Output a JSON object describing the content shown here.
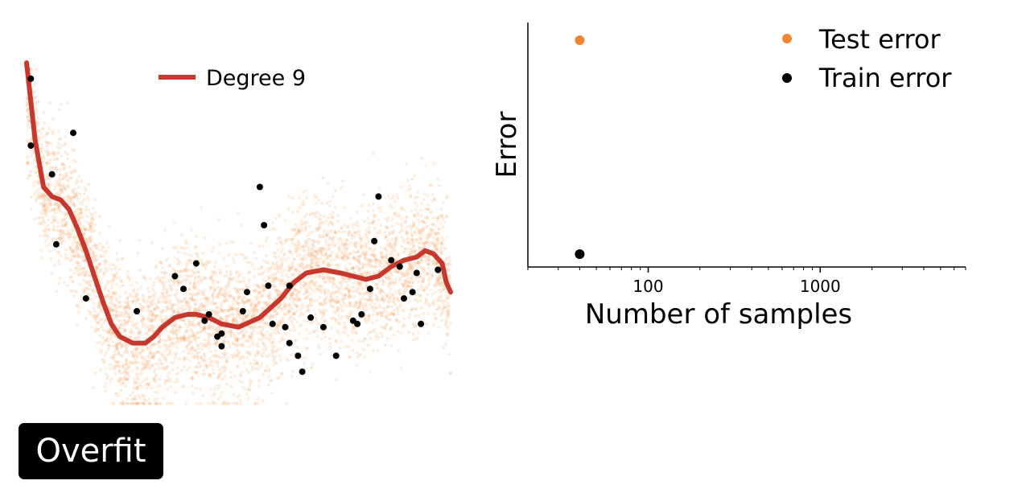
{
  "badge": {
    "label": "Overfit"
  },
  "colors": {
    "fit_line": "#c8372d",
    "population": "#f08a3c",
    "test": "#ee8636",
    "train": "#000000"
  },
  "chart_data": [
    {
      "type": "scatter",
      "title": "",
      "xlabel": "",
      "ylabel": "",
      "axes_visible": false,
      "legend": [
        {
          "name": "Degree 9"
        }
      ],
      "legend_position": "top-center",
      "xlim": [
        0,
        1
      ],
      "ylim": [
        0,
        1
      ],
      "background_population": {
        "count": 5000,
        "shown_as": "faint orange cloud following the same trend"
      },
      "series": [
        {
          "name": "Degree 9",
          "kind": "line",
          "x": [
            0.0,
            0.02,
            0.04,
            0.06,
            0.08,
            0.1,
            0.12,
            0.14,
            0.16,
            0.18,
            0.2,
            0.22,
            0.25,
            0.28,
            0.3,
            0.32,
            0.35,
            0.38,
            0.4,
            0.43,
            0.46,
            0.5,
            0.55,
            0.6,
            0.63,
            0.66,
            0.7,
            0.74,
            0.77,
            0.8,
            0.83,
            0.86,
            0.89,
            0.92,
            0.94,
            0.96,
            0.98,
            0.99,
            1.0
          ],
          "y": [
            1.02,
            0.78,
            0.63,
            0.6,
            0.59,
            0.56,
            0.5,
            0.43,
            0.35,
            0.27,
            0.2,
            0.16,
            0.14,
            0.14,
            0.16,
            0.19,
            0.22,
            0.23,
            0.23,
            0.22,
            0.2,
            0.19,
            0.22,
            0.28,
            0.33,
            0.36,
            0.37,
            0.36,
            0.35,
            0.34,
            0.35,
            0.38,
            0.4,
            0.41,
            0.43,
            0.42,
            0.39,
            0.33,
            0.3
          ]
        },
        {
          "name": "Samples",
          "kind": "points",
          "x": [
            0.01,
            0.01,
            0.06,
            0.07,
            0.11,
            0.14,
            0.26,
            0.35,
            0.37,
            0.4,
            0.42,
            0.43,
            0.45,
            0.46,
            0.46,
            0.51,
            0.52,
            0.55,
            0.56,
            0.57,
            0.58,
            0.61,
            0.62,
            0.62,
            0.64,
            0.65,
            0.67,
            0.7,
            0.73,
            0.77,
            0.78,
            0.79,
            0.81,
            0.82,
            0.83,
            0.86,
            0.88,
            0.89,
            0.91,
            0.92,
            0.93,
            0.97
          ],
          "y": [
            0.97,
            0.76,
            0.67,
            0.45,
            0.8,
            0.28,
            0.24,
            0.35,
            0.31,
            0.39,
            0.21,
            0.23,
            0.16,
            0.17,
            0.13,
            0.24,
            0.3,
            0.63,
            0.51,
            0.32,
            0.2,
            0.19,
            0.32,
            0.14,
            0.1,
            0.05,
            0.22,
            0.19,
            0.1,
            0.21,
            0.2,
            0.23,
            0.31,
            0.46,
            0.6,
            0.4,
            0.38,
            0.28,
            0.3,
            0.36,
            0.2,
            0.37
          ]
        }
      ]
    },
    {
      "type": "scatter",
      "title": "",
      "xlabel": "Number of samples",
      "ylabel": "Error",
      "x_scale": "log",
      "xlim": [
        20,
        7000
      ],
      "ylim": [
        0,
        1
      ],
      "y_ticks_visible": false,
      "x_major_ticks": [
        100,
        1000
      ],
      "x_tick_labels": [
        "100",
        "1000"
      ],
      "legend": [
        {
          "name": "Test error"
        },
        {
          "name": "Train error"
        }
      ],
      "legend_position": "top-right",
      "series": [
        {
          "name": "Test error",
          "x": [
            40
          ],
          "y": [
            0.93
          ]
        },
        {
          "name": "Train error",
          "x": [
            40
          ],
          "y": [
            0.05
          ]
        }
      ]
    }
  ]
}
